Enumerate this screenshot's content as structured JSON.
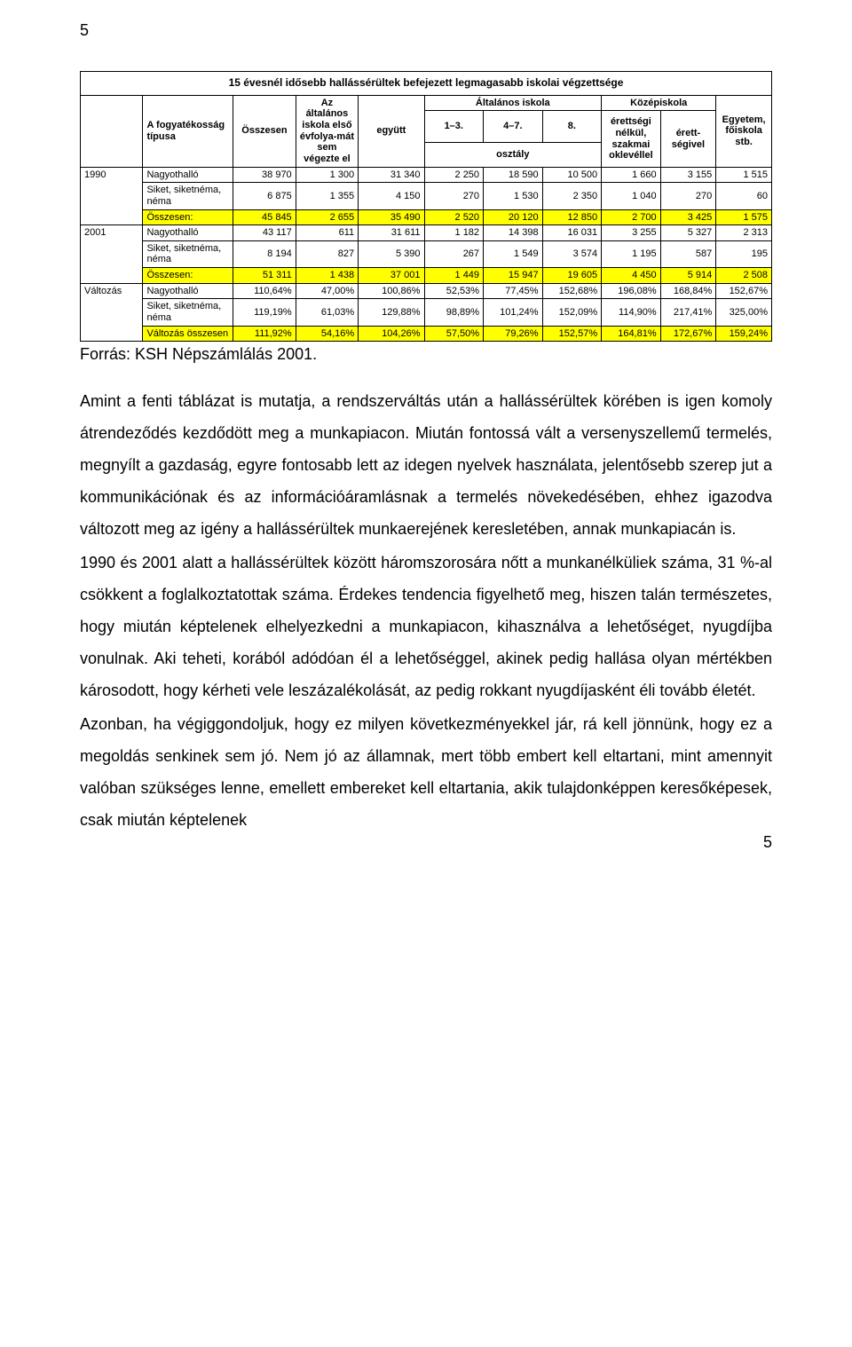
{
  "page_number_top": "5",
  "page_number_bottom": "5",
  "table": {
    "title": "15 évesnél idősebb hallássérültek befejezett legmagasabb iskolai végzettsége",
    "col_headers": {
      "c0": "",
      "c1": "A fogyatékosság típusa",
      "c2": "Összesen",
      "c3": "Az általános iskola első évfolya-mát sem végezte el",
      "c4": "együtt",
      "c5_group": "Általános iskola",
      "c5a": "1–3.",
      "c5b": "4–7.",
      "c5c": "8.",
      "c6_sub": "osztály",
      "c7_group": "Középiskola",
      "c7a": "érettségi nélkül, szakmai oklevéllel",
      "c7b": "érett-ségivel",
      "c8": "Egyetem, főiskola stb."
    },
    "sections": [
      {
        "label": "1990",
        "rows": [
          {
            "name": "Nagyothalló",
            "vals": [
              "38 970",
              "1 300",
              "31 340",
              "2 250",
              "18 590",
              "10 500",
              "1 660",
              "3 155",
              "1 515"
            ]
          },
          {
            "name": "Siket, siketnéma, néma",
            "vals": [
              "6 875",
              "1 355",
              "4 150",
              "270",
              "1 530",
              "2 350",
              "1 040",
              "270",
              "60"
            ]
          },
          {
            "name": "Összesen:",
            "vals": [
              "45 845",
              "2 655",
              "35 490",
              "2 520",
              "20 120",
              "12 850",
              "2 700",
              "3 425",
              "1 575"
            ],
            "highlight": true
          }
        ]
      },
      {
        "label": "2001",
        "rows": [
          {
            "name": "Nagyothalló",
            "vals": [
              "43 117",
              "611",
              "31 611",
              "1 182",
              "14 398",
              "16 031",
              "3 255",
              "5 327",
              "2 313"
            ]
          },
          {
            "name": "Siket, siketnéma, néma",
            "vals": [
              "8 194",
              "827",
              "5 390",
              "267",
              "1 549",
              "3 574",
              "1 195",
              "587",
              "195"
            ]
          },
          {
            "name": "Összesen:",
            "vals": [
              "51 311",
              "1 438",
              "37 001",
              "1 449",
              "15 947",
              "19 605",
              "4 450",
              "5 914",
              "2 508"
            ],
            "highlight": true
          }
        ]
      },
      {
        "label": "Változás",
        "rows": [
          {
            "name": "Nagyothalló",
            "vals": [
              "110,64%",
              "47,00%",
              "100,86%",
              "52,53%",
              "77,45%",
              "152,68%",
              "196,08%",
              "168,84%",
              "152,67%"
            ]
          },
          {
            "name": "Siket, siketnéma, néma",
            "vals": [
              "119,19%",
              "61,03%",
              "129,88%",
              "98,89%",
              "101,24%",
              "152,09%",
              "114,90%",
              "217,41%",
              "325,00%"
            ]
          },
          {
            "name": "Változás összesen",
            "vals": [
              "111,92%",
              "54,16%",
              "104,26%",
              "57,50%",
              "79,26%",
              "152,57%",
              "164,81%",
              "172,67%",
              "159,24%"
            ],
            "highlight": true
          }
        ]
      }
    ]
  },
  "source": "Forrás: KSH Népszámlálás 2001.",
  "paragraphs": [
    "Amint a fenti táblázat is mutatja, a rendszerváltás után a hallássérültek körében is igen komoly átrendeződés kezdődött meg a munkapiacon. Miután fontossá vált a versenyszellemű termelés, megnyílt a gazdaság, egyre fontosabb lett az idegen nyelvek használata, jelentősebb szerep jut a kommunikációnak és az információáramlásnak a termelés növekedésében, ehhez igazodva változott meg az igény a hallássérültek munkaerejének keresletében, annak munkapiacán is.",
    "1990 és 2001 alatt a hallássérültek között háromszorosára nőtt a munkanélküliek száma, 31 %-al csökkent a foglalkoztatottak száma. Érdekes tendencia figyelhető meg, hiszen talán természetes, hogy miután képtelenek elhelyezkedni a munkapiacon, kihasználva a lehetőséget, nyugdíjba vonulnak. Aki teheti, korából adódóan él a lehetőséggel, akinek pedig hallása olyan mértékben károsodott, hogy kérheti vele leszázalékolását, az pedig rokkant nyugdíjasként éli tovább életét.",
    "Azonban, ha végiggondoljuk, hogy ez milyen következményekkel jár, rá kell jönnünk, hogy ez a megoldás senkinek sem jó. Nem jó az államnak, mert több embert kell eltartani, mint amennyit valóban szükséges lenne, emellett embereket kell eltartania, akik tulajdonképpen keresőképesek, csak miután képtelenek"
  ],
  "colors": {
    "highlight_bg": "#ffff00",
    "text": "#000000",
    "background": "#ffffff",
    "border": "#000000"
  }
}
